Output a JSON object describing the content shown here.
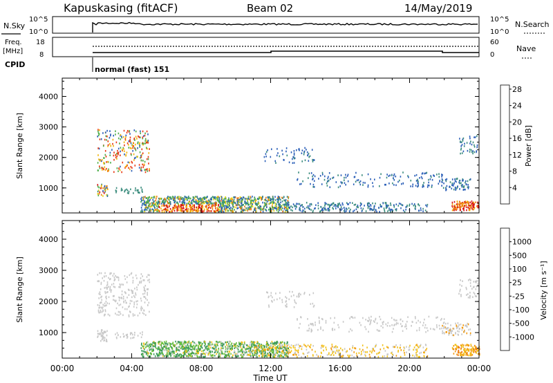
{
  "header": {
    "station": "Kapuskasing (fitACF)",
    "beam": "Beam 02",
    "date": "14/May/2019"
  },
  "top_panels": {
    "nsky": {
      "left_label": "N.Sky",
      "right_label": "N.Search",
      "left_ticks": [
        "10^5",
        "10^0"
      ],
      "right_ticks": [
        "10^5",
        "10^0"
      ]
    },
    "freq": {
      "left_label_1": "Freq.",
      "left_label_2": "[MHz]",
      "left_ticks": [
        "18",
        "8"
      ],
      "right_label": "Nave",
      "right_ticks": [
        "60",
        "0"
      ]
    },
    "cpid": {
      "label": "CPID",
      "mode": "normal (fast) 151"
    }
  },
  "chart_data": [
    {
      "type": "heatmap",
      "title": "",
      "panel": "power",
      "xlabel": "",
      "ylabel": "Slant Range [km]",
      "yticks": [
        "1000",
        "2000",
        "3000",
        "4000"
      ],
      "ylim": [
        180,
        4600
      ],
      "xlim": [
        0,
        24
      ],
      "colorbar": {
        "label": "Power [dB]",
        "ticks": [
          "4",
          "8",
          "12",
          "16",
          "20",
          "24",
          "28"
        ],
        "colors": [
          "#1c1ee0",
          "#2b5fb8",
          "#3a8c7d",
          "#4fae4c",
          "#b8c92a",
          "#e8d616",
          "#f2b50c",
          "#ef7c10",
          "#e83a14",
          "#d81414"
        ]
      }
    },
    {
      "type": "heatmap",
      "title": "",
      "panel": "velocity",
      "xlabel": "Time UT",
      "ylabel": "Slant Range [km]",
      "xticks": [
        "00:00",
        "04:00",
        "08:00",
        "12:00",
        "16:00",
        "20:00",
        "00:00"
      ],
      "yticks": [
        "1000",
        "2000",
        "3000",
        "4000"
      ],
      "ylim": [
        180,
        4600
      ],
      "xlim": [
        0,
        24
      ],
      "colorbar": {
        "label": "Velocity [m s⁻¹]",
        "ticks": [
          "1000",
          "500",
          "100",
          "25",
          "-25",
          "-100",
          "-500",
          "-1000"
        ],
        "colors": [
          "#1c3fb8",
          "#2c6f8c",
          "#3a9a58",
          "#6cc23a",
          "#c8c8c8",
          "#c8c8c8",
          "#f2c21a",
          "#f29a10",
          "#ee6a10",
          "#e01414"
        ]
      }
    }
  ]
}
